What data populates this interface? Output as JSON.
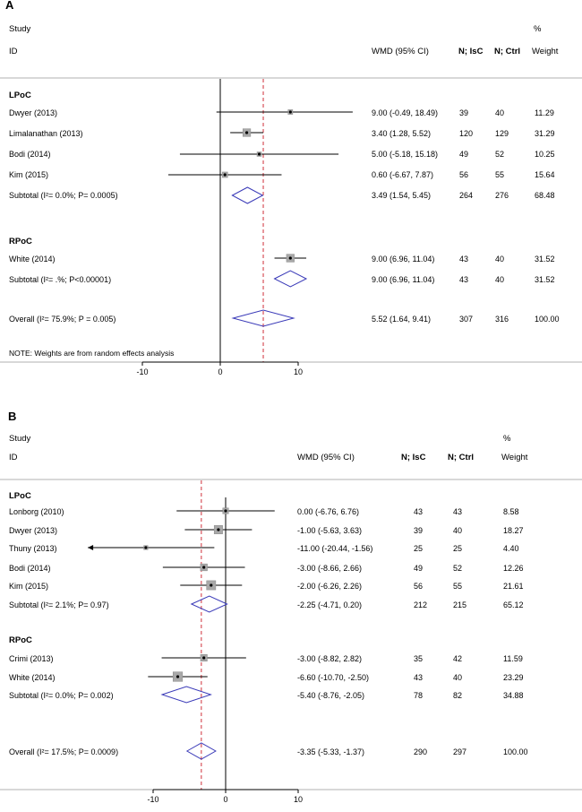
{
  "chart_data": [
    {
      "type": "forest",
      "panel_label": "A",
      "headers": {
        "study": "Study",
        "id": "ID",
        "wmd": "WMD (95% CI)",
        "n_isc": "N; IsC",
        "n_ctrl": "N; Ctrl",
        "pct": "%",
        "weight": "Weight"
      },
      "xaxis": {
        "min": -17,
        "max": 17,
        "ticks": [
          -10,
          0,
          10
        ],
        "tick_labels": [
          "-10",
          "0",
          "10"
        ]
      },
      "overall_ref": 5.52,
      "rows": [
        {
          "kind": "group",
          "label": "LPoC"
        },
        {
          "kind": "study",
          "label": "Dwyer (2013)",
          "est": 9.0,
          "lo": -0.49,
          "hi": 18.49,
          "ci_text": "9.00 (-0.49, 18.49)",
          "n_isc": "39",
          "n_ctrl": "40",
          "weight": "11.29",
          "w": 11.29
        },
        {
          "kind": "study",
          "label": "Limalanathan (2013)",
          "est": 3.4,
          "lo": 1.28,
          "hi": 5.52,
          "ci_text": "3.40 (1.28, 5.52)",
          "n_isc": "120",
          "n_ctrl": "129",
          "weight": "31.29",
          "w": 31.29
        },
        {
          "kind": "study",
          "label": "Bodi (2014)",
          "est": 5.0,
          "lo": -5.18,
          "hi": 15.18,
          "ci_text": "5.00 (-5.18, 15.18)",
          "n_isc": "49",
          "n_ctrl": "52",
          "weight": "10.25",
          "w": 10.25
        },
        {
          "kind": "study",
          "label": "Kim (2015)",
          "est": 0.6,
          "lo": -6.67,
          "hi": 7.87,
          "ci_text": "0.60 (-6.67, 7.87)",
          "n_isc": "56",
          "n_ctrl": "55",
          "weight": "15.64",
          "w": 15.64
        },
        {
          "kind": "subtotal",
          "label": "Subtotal  (I²= 0.0%; P= 0.0005)",
          "est": 3.49,
          "lo": 1.54,
          "hi": 5.45,
          "ci_text": "3.49 (1.54, 5.45)",
          "n_isc": "264",
          "n_ctrl": "276",
          "weight": "68.48"
        },
        {
          "kind": "group",
          "label": "RPoC"
        },
        {
          "kind": "study",
          "label": "White (2014)",
          "est": 9.0,
          "lo": 6.96,
          "hi": 11.04,
          "ci_text": "9.00 (6.96, 11.04)",
          "n_isc": "43",
          "n_ctrl": "40",
          "weight": "31.52",
          "w": 31.52
        },
        {
          "kind": "subtotal",
          "label": "Subtotal  (I²= .%; P<0.00001)",
          "est": 9.0,
          "lo": 6.96,
          "hi": 11.04,
          "ci_text": "9.00 (6.96, 11.04)",
          "n_isc": "43",
          "n_ctrl": "40",
          "weight": "31.52"
        },
        {
          "kind": "overall",
          "label": "Overall  (I²= 75.9%; P = 0.005)",
          "est": 5.52,
          "lo": 1.64,
          "hi": 9.41,
          "ci_text": "5.52 (1.64, 9.41)",
          "n_isc": "307",
          "n_ctrl": "316",
          "weight": "100.00"
        }
      ],
      "note": "NOTE: Weights are from random effects analysis"
    },
    {
      "type": "forest",
      "panel_label": "B",
      "headers": {
        "study": "Study",
        "id": "ID",
        "wmd": "WMD (95% CI)",
        "n_isc": "N; IsC",
        "n_ctrl": "N; Ctrl",
        "pct": "%",
        "weight": "Weight"
      },
      "xaxis": {
        "min": -19,
        "max": 14,
        "ticks": [
          -10,
          0,
          10
        ],
        "tick_labels": [
          "-10",
          "0",
          "10"
        ]
      },
      "overall_ref": -3.35,
      "rows": [
        {
          "kind": "group",
          "label": "LPoC"
        },
        {
          "kind": "study",
          "label": "Lonborg  (2010)",
          "est": 0.0,
          "lo": -6.76,
          "hi": 6.76,
          "ci_text": "0.00 (-6.76, 6.76)",
          "n_isc": "43",
          "n_ctrl": "43",
          "weight": "8.58",
          "w": 8.58
        },
        {
          "kind": "study",
          "label": "Dwyer  (2013)",
          "est": -1.0,
          "lo": -5.63,
          "hi": 3.63,
          "ci_text": "-1.00 (-5.63, 3.63)",
          "n_isc": "39",
          "n_ctrl": "40",
          "weight": "18.27",
          "w": 18.27
        },
        {
          "kind": "study",
          "label": "Thuny  (2013)",
          "est": -11.0,
          "lo": -20.44,
          "hi": -1.56,
          "ci_text": "-11.00 (-20.44, -1.56)",
          "n_isc": "25",
          "n_ctrl": "25",
          "weight": "4.40",
          "w": 4.4,
          "arrow_left": true
        },
        {
          "kind": "study",
          "label": "Bodi  (2014)",
          "est": -3.0,
          "lo": -8.66,
          "hi": 2.66,
          "ci_text": "-3.00 (-8.66, 2.66)",
          "n_isc": "49",
          "n_ctrl": "52",
          "weight": "12.26",
          "w": 12.26
        },
        {
          "kind": "study",
          "label": "Kim  (2015)",
          "est": -2.0,
          "lo": -6.26,
          "hi": 2.26,
          "ci_text": "-2.00 (-6.26, 2.26)",
          "n_isc": "56",
          "n_ctrl": "55",
          "weight": "21.61",
          "w": 21.61
        },
        {
          "kind": "subtotal",
          "label": "Subtotal  (I²= 2.1%; P= 0.97)",
          "est": -2.25,
          "lo": -4.71,
          "hi": 0.2,
          "ci_text": "-2.25 (-4.71, 0.20)",
          "n_isc": "212",
          "n_ctrl": "215",
          "weight": "65.12"
        },
        {
          "kind": "group",
          "label": "RPoC"
        },
        {
          "kind": "study",
          "label": "Crimi  (2013)",
          "est": -3.0,
          "lo": -8.82,
          "hi": 2.82,
          "ci_text": "-3.00 (-8.82, 2.82)",
          "n_isc": "35",
          "n_ctrl": "42",
          "weight": "11.59",
          "w": 11.59
        },
        {
          "kind": "study",
          "label": "White  (2014)",
          "est": -6.6,
          "lo": -10.7,
          "hi": -2.5,
          "ci_text": "-6.60 (-10.70, -2.50)",
          "n_isc": "43",
          "n_ctrl": "40",
          "weight": "23.29",
          "w": 23.29
        },
        {
          "kind": "subtotal",
          "label": "Subtotal  (I²= 0.0%; P= 0.002)",
          "est": -5.4,
          "lo": -8.76,
          "hi": -2.05,
          "ci_text": "-5.40 (-8.76, -2.05)",
          "n_isc": "78",
          "n_ctrl": "82",
          "weight": "34.88"
        },
        {
          "kind": "overall",
          "label": "Overall  (I²= 17.5%; P= 0.0009)",
          "est": -3.35,
          "lo": -5.33,
          "hi": -1.37,
          "ci_text": "-3.35 (-5.33, -1.37)",
          "n_isc": "290",
          "n_ctrl": "297",
          "weight": "100.00"
        }
      ]
    }
  ]
}
